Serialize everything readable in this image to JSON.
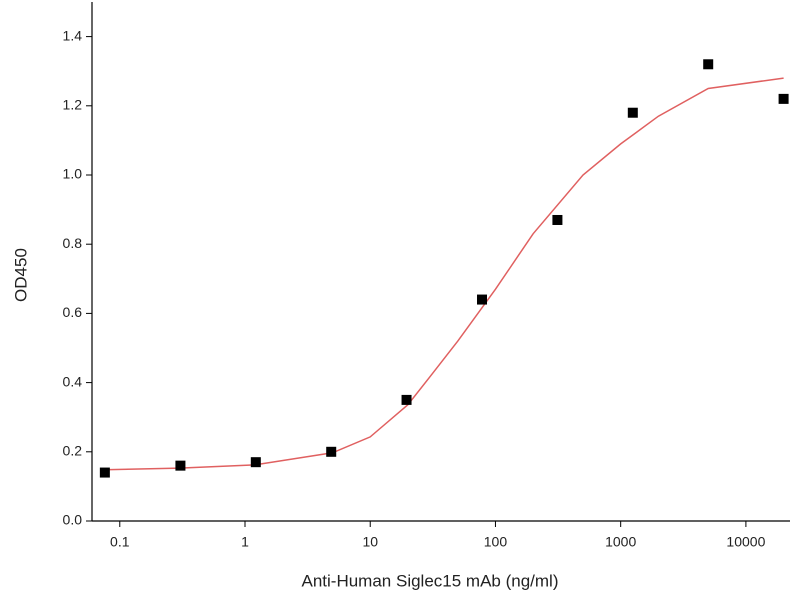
{
  "chart_data": {
    "type": "scatter",
    "xlabel": "Anti-Human Siglec15 mAb (ng/ml)",
    "ylabel": "OD450",
    "x": [
      0.076,
      0.305,
      1.22,
      4.88,
      19.5,
      78.1,
      312.5,
      1250,
      5000,
      20000
    ],
    "values": [
      0.14,
      0.16,
      0.17,
      0.2,
      0.35,
      0.64,
      0.87,
      1.18,
      1.32,
      1.22
    ],
    "color": "#000000",
    "curve": {
      "color": "#e06060",
      "x": [
        0.076,
        0.3,
        1.2,
        5,
        10,
        20,
        30,
        50,
        100,
        200,
        500,
        1000,
        2000,
        5000,
        20000
      ],
      "values": [
        0.148,
        0.153,
        0.162,
        0.197,
        0.243,
        0.336,
        0.417,
        0.52,
        0.67,
        0.83,
        1.0,
        1.09,
        1.17,
        1.25,
        1.28
      ]
    },
    "xscale": "log",
    "xlim": [
      0.06,
      22500
    ],
    "xticks": [
      0.1,
      1,
      10,
      100,
      1000,
      10000
    ],
    "ylim": [
      0,
      1.5
    ],
    "yticks": [
      {
        "value": 0,
        "label": "0.0"
      },
      0.2,
      0.4,
      0.6,
      0.8,
      {
        "value": 1,
        "label": "1.0"
      },
      1.2,
      1.4
    ]
  }
}
